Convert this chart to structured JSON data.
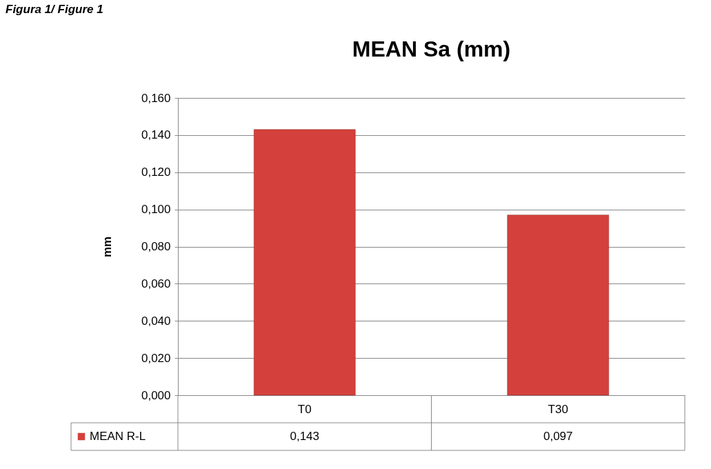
{
  "chart_data": {
    "type": "bar",
    "title": "MEAN Sa (mm)",
    "ylabel": "mm",
    "categories": [
      "T0",
      "T30"
    ],
    "series": [
      {
        "name": "MEAN R-L",
        "color": "#d4403c",
        "values": [
          0.143,
          0.097
        ],
        "value_labels": [
          "0,143",
          "0,097"
        ]
      }
    ],
    "ylim": [
      0,
      0.16
    ],
    "yticks": [
      {
        "value": 0,
        "label": "0,000"
      },
      {
        "value": 0.02,
        "label": "0,020"
      },
      {
        "value": 0.04,
        "label": "0,040"
      },
      {
        "value": 0.06,
        "label": "0,060"
      },
      {
        "value": 0.08,
        "label": "0,080"
      },
      {
        "value": 0.1,
        "label": "0,100"
      },
      {
        "value": 0.12,
        "label": "0,120"
      },
      {
        "value": 0.14,
        "label": "0,140"
      },
      {
        "value": 0.16,
        "label": "0,160"
      }
    ],
    "grid": "y",
    "legend": "bottom",
    "annotations": [
      "Figura 1/ Figure 1"
    ]
  }
}
